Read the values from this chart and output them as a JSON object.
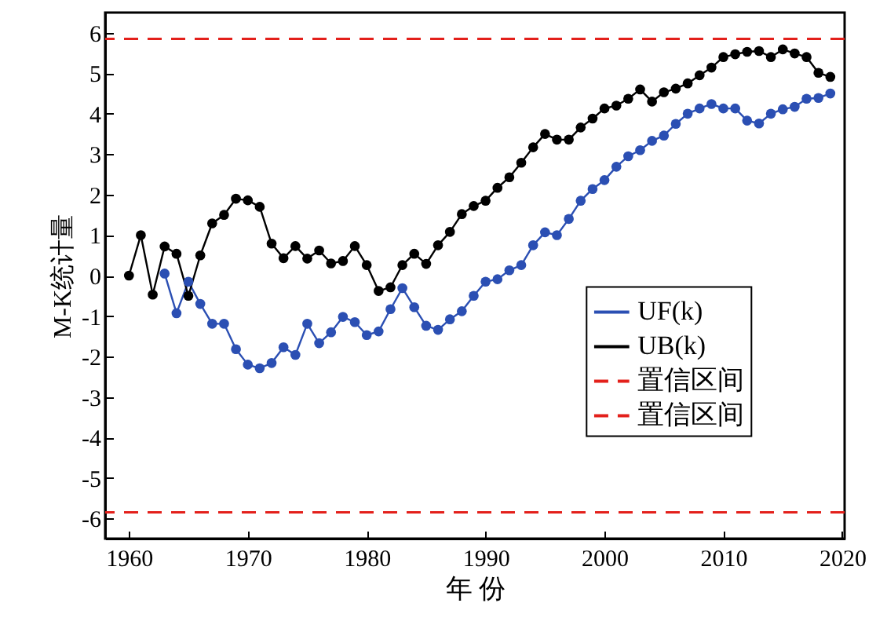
{
  "chart_data": {
    "type": "line",
    "xlabel": "年 份",
    "ylabel": "M-K统计量",
    "xlim": [
      1958,
      2020.2
    ],
    "xticks": [
      1960,
      1970,
      1980,
      1990,
      2000,
      2010,
      2020
    ],
    "ylim": [
      -6.5,
      6.5
    ],
    "yticks": [
      -6,
      -5,
      -4,
      -3,
      -2,
      -1,
      0,
      1,
      2,
      3,
      4,
      5,
      6
    ],
    "grid": false,
    "legend": "right",
    "marker": "circle",
    "line_style": "solid",
    "series": [
      {
        "name": "UF(k)",
        "color": "#2b4fb3",
        "x": [
          1963,
          1964,
          1965,
          1966,
          1967,
          1968,
          1969,
          1970,
          1971,
          1972,
          1973,
          1974,
          1975,
          1976,
          1977,
          1978,
          1979,
          1980,
          1981,
          1982,
          1983,
          1984,
          1985,
          1986,
          1987,
          1988,
          1989,
          1990,
          1991,
          1992,
          1993,
          1994,
          1995,
          1996,
          1997,
          1998,
          1999,
          2000,
          2001,
          2002,
          2003,
          2004,
          2005,
          2006,
          2007,
          2008,
          2009,
          2010,
          2011,
          2012,
          2013,
          2014,
          2015,
          2016,
          2017,
          2018,
          2019
        ],
        "values": [
          0.05,
          -0.93,
          -0.15,
          -0.7,
          -1.19,
          -1.19,
          -1.82,
          -2.2,
          -2.29,
          -2.16,
          -1.77,
          -1.96,
          -1.19,
          -1.67,
          -1.4,
          -1.02,
          -1.15,
          -1.47,
          -1.38,
          -0.83,
          -0.31,
          -0.78,
          -1.24,
          -1.34,
          -1.08,
          -0.88,
          -0.5,
          -0.15,
          -0.09,
          0.13,
          0.26,
          0.75,
          1.07,
          1.0,
          1.4,
          1.85,
          2.14,
          2.36,
          2.69,
          2.95,
          3.1,
          3.33,
          3.46,
          3.75,
          4.0,
          4.13,
          4.24,
          4.13,
          4.13,
          3.83,
          3.76,
          4.0,
          4.11,
          4.17,
          4.37,
          4.39,
          4.5
        ]
      },
      {
        "name": "UB(k)",
        "color": "#000000",
        "x": [
          1960,
          1961,
          1962,
          1963,
          1964,
          1965,
          1966,
          1967,
          1968,
          1969,
          1970,
          1971,
          1972,
          1973,
          1974,
          1975,
          1976,
          1977,
          1978,
          1979,
          1980,
          1981,
          1982,
          1983,
          1984,
          1985,
          1986,
          1987,
          1988,
          1989,
          1990,
          1991,
          1992,
          1993,
          1994,
          1995,
          1996,
          1997,
          1998,
          1999,
          2000,
          2001,
          2002,
          2003,
          2004,
          2005,
          2006,
          2007,
          2008,
          2009,
          2010,
          2011,
          2012,
          2013,
          2014,
          2015,
          2016,
          2017,
          2018,
          2019
        ],
        "values": [
          0.0,
          1.0,
          -0.47,
          0.72,
          0.54,
          -0.5,
          0.5,
          1.29,
          1.5,
          1.9,
          1.86,
          1.7,
          0.79,
          0.43,
          0.73,
          0.42,
          0.62,
          0.3,
          0.36,
          0.73,
          0.26,
          -0.38,
          -0.29,
          0.26,
          0.54,
          0.29,
          0.75,
          1.08,
          1.52,
          1.72,
          1.85,
          2.17,
          2.43,
          2.79,
          3.17,
          3.5,
          3.36,
          3.36,
          3.66,
          3.88,
          4.13,
          4.2,
          4.37,
          4.6,
          4.3,
          4.53,
          4.62,
          4.75,
          4.95,
          5.14,
          5.4,
          5.47,
          5.53,
          5.55,
          5.4,
          5.59,
          5.49,
          5.4,
          5.01,
          4.91
        ]
      }
    ],
    "ref_lines": [
      {
        "axis": "y",
        "value": 5.85,
        "label": "置信区间",
        "color": "#e3201b",
        "line_style": "dashed"
      },
      {
        "axis": "y",
        "value": -5.85,
        "label": "置信区间",
        "color": "#e3201b",
        "line_style": "dashed"
      }
    ]
  }
}
